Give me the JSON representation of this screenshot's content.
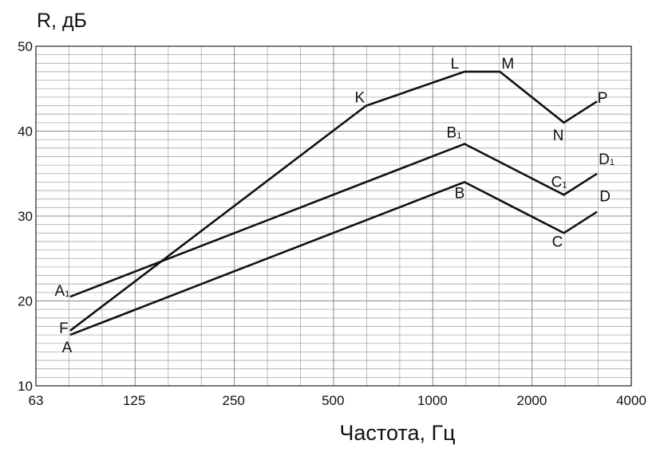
{
  "chart_data": {
    "type": "line",
    "title": "",
    "xlabel": "Частота, Гц",
    "ylabel": "R, дБ",
    "x_scale": "log2",
    "xlim": [
      63,
      4000
    ],
    "ylim": [
      10,
      50
    ],
    "x_ticks": [
      63,
      125,
      250,
      500,
      1000,
      2000,
      4000
    ],
    "x_tick_labels": [
      "63",
      "125",
      "250",
      "500",
      "1000",
      "2000",
      "4000"
    ],
    "y_ticks": [
      10,
      20,
      30,
      40,
      50
    ],
    "y_tick_labels": [
      "10",
      "20",
      "30",
      "40",
      "50"
    ],
    "grid": {
      "horizontal_step": 1,
      "vertical_per_octave": 3
    },
    "legend": "none",
    "series": [
      {
        "points": [
          {
            "label": "A",
            "x": 80,
            "y": 16
          },
          {
            "label": "B",
            "x": 1250,
            "y": 34
          },
          {
            "label": "C",
            "x": 2500,
            "y": 28
          },
          {
            "label": "D",
            "x": 3150,
            "y": 30.5
          }
        ]
      },
      {
        "points": [
          {
            "label": "A",
            "sub": "1",
            "x": 80,
            "y": 20.5
          },
          {
            "label": "B",
            "sub": "1",
            "x": 1250,
            "y": 38.5
          },
          {
            "label": "C",
            "sub": "1",
            "x": 2500,
            "y": 32.5
          },
          {
            "label": "D",
            "sub": "1",
            "x": 3150,
            "y": 35
          }
        ]
      },
      {
        "points": [
          {
            "label": "F",
            "x": 80,
            "y": 16.5
          },
          {
            "label": "K",
            "x": 630,
            "y": 43
          },
          {
            "label": "L",
            "x": 1250,
            "y": 47
          },
          {
            "label": "M",
            "x": 1600,
            "y": 47
          },
          {
            "label": "N",
            "x": 2500,
            "y": 41
          },
          {
            "label": "P",
            "x": 3150,
            "y": 43.5
          }
        ]
      }
    ]
  }
}
